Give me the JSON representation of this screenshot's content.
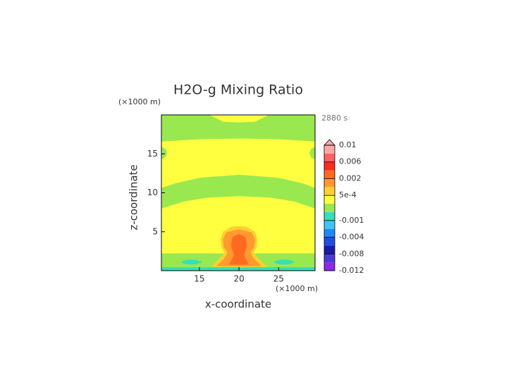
{
  "chart_data": {
    "type": "contour",
    "title": "H2O-g Mixing Ratio",
    "x_label": "x-coordinate",
    "y_label": "z-coordinate",
    "x_unit": "(×1000 m)",
    "y_unit": "(×1000 m)",
    "time_label": "2880 s",
    "xlim": [
      10.2,
      29.6
    ],
    "ylim": [
      0,
      20
    ],
    "xticks": [
      15,
      20,
      25
    ],
    "yticks": [
      5,
      10,
      15
    ],
    "colorbar": {
      "levels": [
        -0.012,
        -0.01,
        -0.008,
        -0.006,
        -0.004,
        -0.002,
        -0.001,
        -0.0005,
        0,
        0.0005,
        0.001,
        0.002,
        0.004,
        0.006,
        0.008,
        0.01
      ],
      "colors": [
        "#8a2be2",
        "#4a3ad8",
        "#1a1aa8",
        "#1e4ee0",
        "#1e88ff",
        "#3ec6f0",
        "#33e0b8",
        "#9ae850",
        "#ffff40",
        "#ffd030",
        "#ff9a30",
        "#ff6a20",
        "#ff2a20",
        "#ff6060",
        "#ffa8a8"
      ],
      "ticks": [
        0.01,
        0.006,
        0.002,
        {
          "value": 0.0005,
          "label": "5e-4"
        },
        -0.001,
        -0.004,
        -0.008,
        -0.012
      ]
    },
    "regions": [
      {
        "level": 0,
        "x": [
          10.2,
          29.6,
          29.6,
          10.2
        ],
        "z": [
          0,
          0,
          20,
          20
        ]
      },
      {
        "level": -0.0005,
        "x": [
          10.2,
          15,
          20,
          25,
          29.6,
          29.6,
          23.8,
          22,
          20,
          18,
          16.2,
          10.2
        ],
        "z": [
          16.6,
          16.9,
          17,
          16.9,
          16.6,
          20,
          20,
          19.1,
          19,
          19.1,
          20,
          20
        ]
      },
      {
        "level": -0.0005,
        "x": [
          10.2,
          10.7,
          10.9,
          10.7,
          10.2
        ],
        "z": [
          14.3,
          14.6,
          15.1,
          15.6,
          15.9
        ]
      },
      {
        "level": -0.0005,
        "x": [
          29.6,
          29.1,
          28.9,
          29.1,
          29.6
        ],
        "z": [
          14.3,
          14.6,
          15.1,
          15.6,
          15.9
        ]
      },
      {
        "level": -0.0005,
        "x": [
          10.2,
          12,
          15,
          20,
          25,
          28,
          29.6,
          29.6,
          27,
          24,
          20,
          16,
          13,
          10.2
        ],
        "z": [
          10.6,
          11.2,
          11.9,
          12.3,
          11.9,
          11.2,
          10.6,
          8,
          8.9,
          9.4,
          9.6,
          9.4,
          8.9,
          8
        ]
      },
      {
        "level": -0.0005,
        "x": [
          10.2,
          29.6,
          29.6,
          10.2
        ],
        "z": [
          0.5,
          0.5,
          2.2,
          2.2
        ]
      },
      {
        "level": -0.001,
        "x": [
          10.2,
          29.6,
          29.6,
          10.2
        ],
        "z": [
          0,
          0,
          0.45,
          0.45
        ]
      },
      {
        "level": -0.001,
        "x": [
          12.7,
          13.3,
          14,
          14.7,
          15.3,
          14.7,
          14,
          13.3
        ],
        "z": [
          1.1,
          0.85,
          0.8,
          0.85,
          1.1,
          1.35,
          1.4,
          1.35
        ]
      },
      {
        "level": -0.001,
        "x": [
          24.4,
          25,
          25.7,
          26.4,
          27,
          26.4,
          25.7,
          25
        ],
        "z": [
          1.1,
          0.85,
          0.8,
          0.85,
          1.1,
          1.35,
          1.4,
          1.35
        ]
      },
      {
        "level": 0.0005,
        "x": [
          16.5,
          23.5,
          22.5,
          21.8,
          22.2,
          22.3,
          22,
          21,
          20,
          19,
          18,
          17.7,
          17.8,
          18.2,
          17.5
        ],
        "z": [
          0.5,
          0.5,
          1.5,
          2.3,
          3,
          4,
          5,
          5.6,
          5.7,
          5.6,
          5,
          4,
          3,
          2.3,
          1.5
        ]
      },
      {
        "level": 0.001,
        "x": [
          17.2,
          22.8,
          21.8,
          21.4,
          21.9,
          22,
          21.6,
          20,
          18.4,
          18,
          18.1,
          18.6,
          18.2
        ],
        "z": [
          0.6,
          0.6,
          1.6,
          2.4,
          3,
          4,
          4.9,
          5.3,
          4.9,
          4,
          3,
          2.4,
          1.6
        ]
      },
      {
        "level": 0.002,
        "x": [
          18.8,
          21.2,
          20.6,
          21,
          20.8,
          20,
          19.2,
          19,
          19.4
        ],
        "z": [
          0.8,
          0.8,
          2,
          3.2,
          4.3,
          4.7,
          4.3,
          3.2,
          2
        ]
      }
    ]
  }
}
